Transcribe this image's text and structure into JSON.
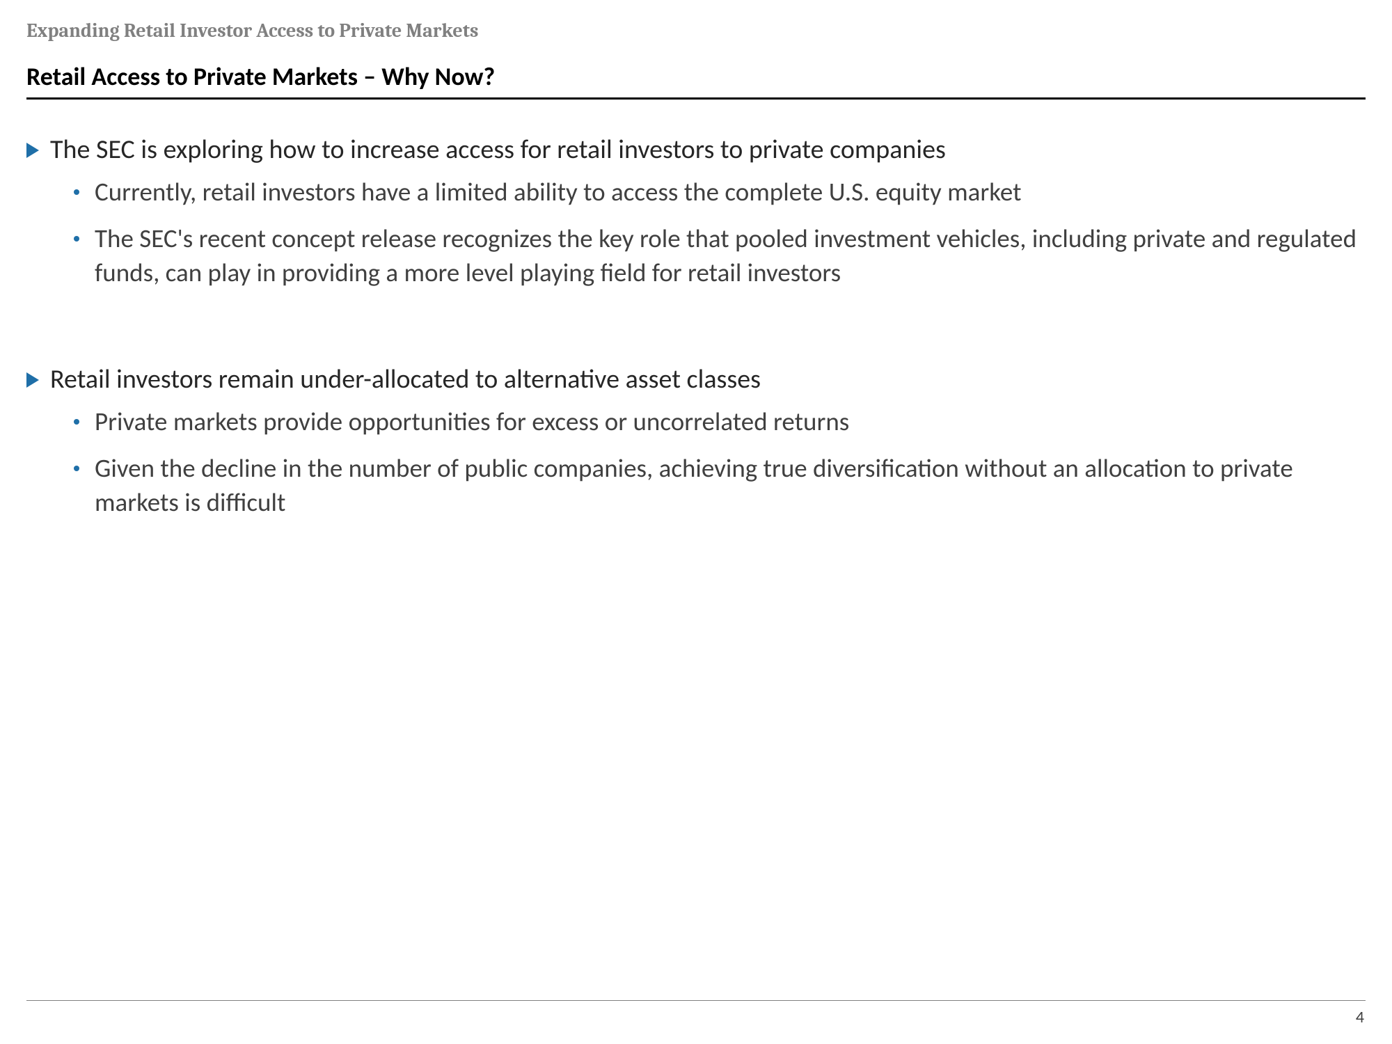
{
  "header": {
    "subtitle": "Expanding Retail Investor Access to Private Markets",
    "title": "Retail Access to Private Markets – Why Now?"
  },
  "content": {
    "sections": [
      {
        "main": "The SEC is exploring how to increase access for retail investors to private companies",
        "subs": [
          "Currently, retail investors have a limited ability to access the complete U.S. equity market",
          "The SEC's recent concept release recognizes the key role that pooled investment vehicles, including private and regulated funds, can play in providing a more level playing field for retail investors"
        ]
      },
      {
        "main": "Retail investors remain under-allocated to alternative asset classes",
        "subs": [
          "Private markets provide opportunities for excess or uncorrelated returns",
          "Given the decline in the number of public companies, achieving true diversification without an allocation to private markets is difficult"
        ]
      }
    ]
  },
  "footer": {
    "pageNumber": "4"
  },
  "colors": {
    "accent": "#1f6fa8",
    "headerGray": "#808080",
    "bodyText": "#262626",
    "subText": "#404040"
  }
}
